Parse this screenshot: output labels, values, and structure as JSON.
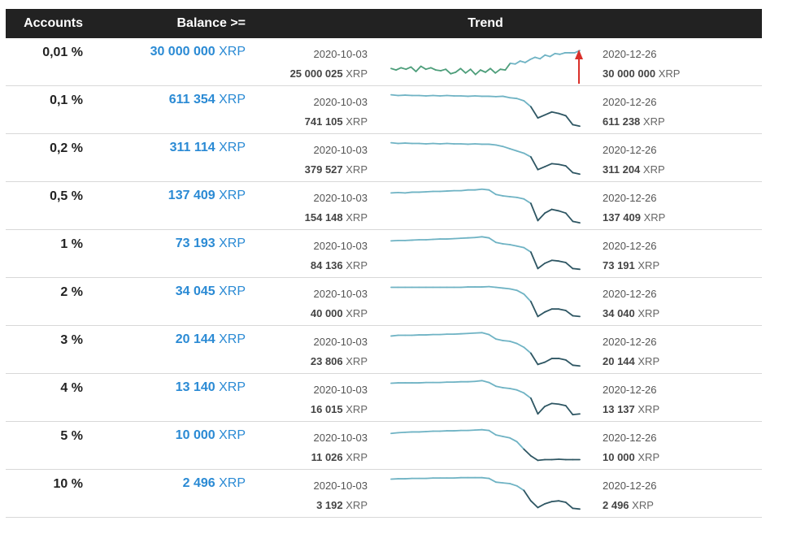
{
  "header": {
    "accounts": "Accounts",
    "balance": "Balance >=",
    "trend": "Trend"
  },
  "currency": "XRP",
  "colors": {
    "header_bg": "#222222",
    "balance_blue": "#2a8ad4",
    "trend_light": "#6fb3c4",
    "trend_dark": "#2e5663",
    "trend_green": "#4d9e7a",
    "arrow_red": "#d9302a"
  },
  "rows": [
    {
      "pct": "0,01 %",
      "balance": "30 000 000",
      "start_date": "2020-10-03",
      "start_value": "25 000 025",
      "end_date": "2020-12-26",
      "end_value": "30 000 000",
      "trend": [
        0.32,
        0.28,
        0.34,
        0.3,
        0.36,
        0.24,
        0.38,
        0.3,
        0.34,
        0.28,
        0.26,
        0.3,
        0.18,
        0.22,
        0.32,
        0.2,
        0.3,
        0.16,
        0.28,
        0.22,
        0.32,
        0.2,
        0.3,
        0.28,
        0.46,
        0.44,
        0.52,
        0.48,
        0.56,
        0.62,
        0.58,
        0.68,
        0.64,
        0.72,
        0.7,
        0.74,
        0.74,
        0.74,
        0.8
      ]
    },
    {
      "pct": "0,1 %",
      "balance": "611 354",
      "start_date": "2020-10-03",
      "start_value": "741 105",
      "end_date": "2020-12-26",
      "end_value": "611 238",
      "trend": [
        0.9,
        0.88,
        0.89,
        0.88,
        0.88,
        0.87,
        0.88,
        0.87,
        0.88,
        0.87,
        0.87,
        0.86,
        0.87,
        0.86,
        0.86,
        0.85,
        0.86,
        0.82,
        0.8,
        0.74,
        0.58,
        0.28,
        0.36,
        0.44,
        0.4,
        0.34,
        0.1,
        0.06
      ]
    },
    {
      "pct": "0,2 %",
      "balance": "311 114",
      "start_date": "2020-10-03",
      "start_value": "379 527",
      "end_date": "2020-12-26",
      "end_value": "311 204",
      "trend": [
        0.9,
        0.88,
        0.89,
        0.88,
        0.88,
        0.87,
        0.88,
        0.87,
        0.88,
        0.87,
        0.87,
        0.86,
        0.87,
        0.86,
        0.86,
        0.84,
        0.8,
        0.74,
        0.68,
        0.62,
        0.52,
        0.18,
        0.26,
        0.34,
        0.32,
        0.28,
        0.1,
        0.06
      ]
    },
    {
      "pct": "0,5 %",
      "balance": "137 409",
      "start_date": "2020-10-03",
      "start_value": "154 148",
      "end_date": "2020-12-26",
      "end_value": "137 409",
      "trend": [
        0.84,
        0.85,
        0.84,
        0.86,
        0.86,
        0.87,
        0.88,
        0.88,
        0.89,
        0.9,
        0.9,
        0.92,
        0.92,
        0.94,
        0.92,
        0.8,
        0.76,
        0.74,
        0.72,
        0.68,
        0.56,
        0.1,
        0.3,
        0.4,
        0.36,
        0.3,
        0.08,
        0.04
      ]
    },
    {
      "pct": "1 %",
      "balance": "73 193",
      "start_date": "2020-10-03",
      "start_value": "84 136",
      "end_date": "2020-12-26",
      "end_value": "73 191",
      "trend": [
        0.84,
        0.85,
        0.85,
        0.86,
        0.87,
        0.87,
        0.88,
        0.89,
        0.89,
        0.9,
        0.91,
        0.92,
        0.93,
        0.95,
        0.92,
        0.8,
        0.76,
        0.74,
        0.7,
        0.66,
        0.54,
        0.1,
        0.24,
        0.32,
        0.3,
        0.26,
        0.1,
        0.08
      ]
    },
    {
      "pct": "2 %",
      "balance": "34 045",
      "start_date": "2020-10-03",
      "start_value": "40 000",
      "end_date": "2020-12-26",
      "end_value": "34 040",
      "trend": [
        0.88,
        0.88,
        0.88,
        0.88,
        0.88,
        0.88,
        0.88,
        0.88,
        0.88,
        0.88,
        0.88,
        0.89,
        0.89,
        0.89,
        0.9,
        0.88,
        0.86,
        0.84,
        0.8,
        0.7,
        0.5,
        0.1,
        0.22,
        0.3,
        0.3,
        0.26,
        0.12,
        0.1
      ]
    },
    {
      "pct": "3 %",
      "balance": "20 144",
      "start_date": "2020-10-03",
      "start_value": "23 806",
      "end_date": "2020-12-26",
      "end_value": "20 144",
      "trend": [
        0.86,
        0.88,
        0.88,
        0.88,
        0.89,
        0.89,
        0.9,
        0.9,
        0.91,
        0.91,
        0.92,
        0.93,
        0.94,
        0.95,
        0.9,
        0.78,
        0.74,
        0.72,
        0.66,
        0.56,
        0.4,
        0.1,
        0.16,
        0.26,
        0.26,
        0.22,
        0.08,
        0.06
      ]
    },
    {
      "pct": "4 %",
      "balance": "13 140",
      "start_date": "2020-10-03",
      "start_value": "16 015",
      "end_date": "2020-12-26",
      "end_value": "13 137",
      "trend": [
        0.88,
        0.89,
        0.89,
        0.89,
        0.89,
        0.9,
        0.9,
        0.9,
        0.91,
        0.91,
        0.92,
        0.92,
        0.93,
        0.95,
        0.9,
        0.8,
        0.76,
        0.74,
        0.7,
        0.62,
        0.48,
        0.06,
        0.26,
        0.34,
        0.32,
        0.28,
        0.04,
        0.06
      ]
    },
    {
      "pct": "5 %",
      "balance": "10 000",
      "start_date": "2020-10-03",
      "start_value": "11 026",
      "end_date": "2020-12-26",
      "end_value": "10 000",
      "trend": [
        0.82,
        0.84,
        0.85,
        0.86,
        0.86,
        0.87,
        0.88,
        0.88,
        0.89,
        0.89,
        0.9,
        0.9,
        0.91,
        0.92,
        0.9,
        0.78,
        0.74,
        0.7,
        0.6,
        0.4,
        0.22,
        0.1,
        0.12,
        0.12,
        0.13,
        0.12,
        0.12,
        0.12
      ]
    },
    {
      "pct": "10 %",
      "balance": "2 496",
      "start_date": "2020-10-03",
      "start_value": "3 192",
      "end_date": "2020-12-26",
      "end_value": "2 496",
      "trend": [
        0.88,
        0.89,
        0.89,
        0.9,
        0.9,
        0.9,
        0.91,
        0.91,
        0.91,
        0.91,
        0.92,
        0.92,
        0.92,
        0.92,
        0.9,
        0.8,
        0.78,
        0.76,
        0.7,
        0.58,
        0.3,
        0.12,
        0.22,
        0.28,
        0.3,
        0.26,
        0.1,
        0.08
      ]
    }
  ]
}
